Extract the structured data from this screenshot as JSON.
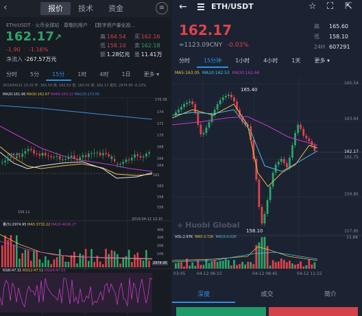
{
  "left": {
    "back_icon": "‹",
    "tabs": [
      "报价",
      "技术",
      "资金"
    ],
    "menu_icon": "≡",
    "name_line": "ETH/USDT · 火币全球站   ·   尊敬的用户 · 【数字资产量化投...",
    "price": "162.17",
    "price_arrow": "↗",
    "change": "-1.90",
    "change_pct": "-1.16%",
    "flow_label": "净流入",
    "flow_value": "-267.57万元",
    "stats": [
      {
        "k": "高",
        "v": "164.54",
        "k2": "买",
        "v2": "162.16"
      },
      {
        "k": "低",
        "v": "158.10",
        "k2": "卖",
        "v2": "162.18"
      },
      {
        "k": "额",
        "v": "1.28亿元",
        "k2": "量",
        "v2": "11.41万"
      }
    ],
    "periods": [
      "分时",
      "5分",
      "15分",
      "1时",
      "4时",
      "1日",
      "更多 ▾"
    ],
    "active_period": 2,
    "info_line": "2019/04/12 13:15 开: 162.53 高: 162.53 低: 162.01 收: 162.17 成交: 2974.95  -0.23%",
    "ma_line": {
      "ma20": "MA20:161.96",
      "ma30": "MA30:162.67",
      "ma60": "MA60:163.22",
      "ma120": "MA120:172.65"
    },
    "y_axis": [
      "176.38",
      "174",
      "172",
      "170",
      "168",
      "166",
      "164",
      "162",
      "160",
      "158",
      "156",
      "155.11"
    ],
    "low_label": "155.11",
    "high_label": "164.40",
    "date_label": "2019-04-12 12:15",
    "vol_line": {
      "vol": "量(5):2974.95",
      "ma5": "MA5:3732.22",
      "ma10": "MA10:4026.27"
    },
    "vol_axis": [
      "40K",
      "30K",
      "20K",
      "10K",
      "2974.95"
    ],
    "rsi_line": {
      "rsi6": "RSI6:47.31",
      "rsi12": "RSI12:47.51",
      "rsi24": "RSI24:47.53"
    }
  },
  "right": {
    "back_icon": "←",
    "title": "ETH/USDT",
    "price": "162.17",
    "cny": "≈1123.09CNY",
    "pct": "-0.03%",
    "stats": [
      {
        "k": "高",
        "v": "165.60"
      },
      {
        "k": "低",
        "v": "158.10"
      },
      {
        "k": "24H",
        "v": "607291"
      }
    ],
    "periods": [
      "分时",
      "15分钟",
      "1小时",
      "4小时",
      "1天",
      "更多 ▾"
    ],
    "active_period": 1,
    "ma_line": {
      "ma5": "MA5:163.05",
      "ma10": "MA10:162.53",
      "ma30": "MA30:162.66"
    },
    "y_axis": [
      "165.54",
      "163.64",
      "161.75",
      "159.85",
      "157.95"
    ],
    "cur_price_tag": "162.17",
    "high_label": "165.40",
    "low_label": "158.10",
    "watermark": "Huobi Global",
    "vol_line": {
      "vol": "VOL:2.97K",
      "ma5": "MA5:3.72K",
      "ma10": "MA10:4.02K"
    },
    "vol_axis": "15.8K",
    "x_axis": [
      "03:45",
      "04-12 06:15",
      "04-12 08:45",
      "04-12 11:15"
    ],
    "bottom_tabs": [
      "深度",
      "成交",
      "简介"
    ],
    "active_bottom_tab": 0
  },
  "colors": {
    "up": "#2ea36a",
    "down": "#e0424c",
    "accent": "#2f8fe0",
    "ma_white": "#e6e9ef",
    "ma_yellow": "#e8c44a",
    "ma_purple": "#c13ec4"
  }
}
